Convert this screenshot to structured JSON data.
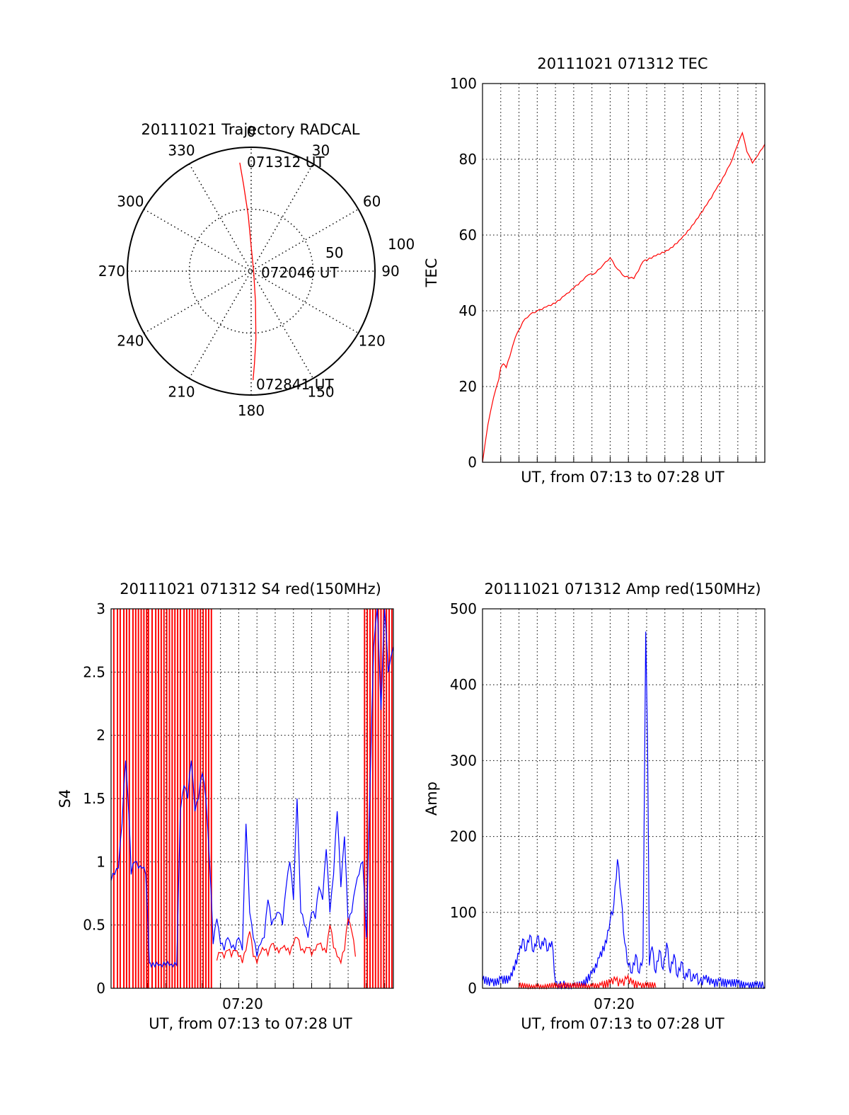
{
  "colors": {
    "red": "#ff0000",
    "blue": "#0000ff",
    "axis": "#000000"
  },
  "chart_data": [
    {
      "type": "polar",
      "title": "20111021 Trajectory RADCAL",
      "angle_ticks": [
        "0",
        "30",
        "60",
        "90",
        "120",
        "150",
        "180",
        "210",
        "240",
        "270",
        "300",
        "330"
      ],
      "radius_ticks": [
        "50",
        "100"
      ],
      "rlim": [
        0,
        100
      ],
      "grid": true,
      "annotations": [
        "071312 UT",
        "072046 UT",
        "072841 UT"
      ],
      "series": [
        {
          "color": "#ff0000",
          "points_az_r": [
            [
              354,
              88
            ],
            [
              355,
              70
            ],
            [
              357,
              45
            ],
            [
              0,
              20
            ],
            [
              90,
              2
            ],
            [
              172,
              25
            ],
            [
              176,
              55
            ],
            [
              178,
              75
            ],
            [
              179,
              88
            ]
          ]
        }
      ]
    },
    {
      "type": "line",
      "title": "20111021 071312 TEC",
      "xlabel": "UT, from 07:13 to 07:28 UT",
      "ylabel": "TEC",
      "xlim": [
        0,
        15.48
      ],
      "ylim": [
        0,
        100
      ],
      "y_ticks": [
        "0",
        "20",
        "40",
        "60",
        "80",
        "100"
      ],
      "grid": true,
      "series": [
        {
          "color": "#ff0000",
          "x": [
            0.0,
            0.3,
            0.6,
            0.9,
            1.0,
            1.15,
            1.3,
            1.5,
            1.8,
            2.2,
            2.6,
            3.0,
            3.5,
            4.0,
            4.5,
            5.0,
            5.5,
            5.8,
            6.2,
            6.6,
            7.0,
            7.4,
            7.8,
            8.3,
            8.8,
            9.5,
            10.2,
            10.9,
            11.6,
            12.3,
            12.8,
            13.3,
            13.7,
            14.0,
            14.25,
            14.5,
            14.8,
            15.1,
            15.48
          ],
          "y": [
            0,
            10,
            17,
            22,
            25,
            26,
            25,
            28,
            33,
            37,
            39,
            40,
            41,
            42,
            44,
            46,
            48,
            49.5,
            50,
            52,
            54,
            51,
            49,
            48.5,
            53,
            54.5,
            56,
            59,
            63,
            68,
            72,
            76,
            80,
            84,
            87,
            82,
            79,
            81,
            84
          ]
        }
      ]
    },
    {
      "type": "line",
      "title": "20111021 071312 S4 red(150MHz)",
      "xlabel": "UT, from 07:13 to 07:28 UT",
      "ylabel": "S4",
      "xlim": [
        0,
        15.48
      ],
      "ylim": [
        0,
        3
      ],
      "y_ticks": [
        "0",
        "0.5",
        "1",
        "1.5",
        "2",
        "2.5",
        "3"
      ],
      "x_tick_labels": [
        "07:20"
      ],
      "grid": true,
      "series": [
        {
          "color": "#0000ff",
          "x": [
            0.0,
            0.2,
            0.4,
            0.6,
            0.8,
            1.0,
            1.1,
            1.3,
            1.5,
            1.7,
            1.9,
            2.1,
            2.2,
            2.4,
            2.6,
            2.8,
            3.0,
            3.2,
            3.4,
            3.6,
            3.8,
            4.0,
            4.2,
            4.4,
            4.6,
            4.8,
            5.0,
            5.2,
            5.4,
            5.6,
            5.8,
            6.0,
            6.2,
            6.4,
            6.6,
            6.8,
            7.0,
            7.2,
            7.4,
            7.6,
            7.8,
            8.0,
            8.2,
            8.4,
            8.6,
            8.8,
            9.0,
            9.2,
            9.4,
            9.6,
            9.8,
            10.0,
            10.2,
            10.4,
            10.6,
            10.8,
            11.0,
            11.2,
            11.4,
            11.6,
            11.8,
            12.0,
            12.2,
            12.4,
            12.6,
            12.8,
            13.0,
            13.2,
            13.4,
            13.6,
            13.8,
            14.0,
            14.2,
            14.4,
            14.6,
            14.8,
            15.0,
            15.2,
            15.48
          ],
          "y": [
            0.85,
            0.9,
            0.95,
            1.3,
            1.8,
            1.3,
            0.9,
            1.0,
            0.95,
            0.95,
            0.9,
            0.2,
            0.17,
            0.17,
            0.18,
            0.17,
            0.18,
            0.18,
            0.17,
            0.18,
            1.4,
            1.6,
            1.5,
            1.8,
            1.4,
            1.5,
            1.7,
            1.5,
            1.0,
            0.35,
            0.55,
            0.35,
            0.3,
            0.4,
            0.32,
            0.3,
            0.4,
            0.3,
            1.3,
            0.6,
            0.4,
            0.25,
            0.35,
            0.4,
            0.7,
            0.5,
            0.55,
            0.6,
            0.5,
            0.8,
            1.0,
            0.7,
            1.5,
            0.6,
            0.5,
            0.4,
            0.6,
            0.55,
            0.8,
            0.7,
            1.1,
            0.6,
            0.9,
            1.4,
            0.8,
            1.2,
            0.5,
            0.6,
            0.8,
            0.9,
            1.0,
            0.4,
            1.6,
            2.7,
            3.0,
            2.2,
            3.0,
            2.5,
            2.7
          ]
        },
        {
          "color": "#ff0000",
          "x": [
            5.8,
            6.0,
            6.2,
            6.4,
            6.6,
            6.8,
            7.0,
            7.2,
            7.4,
            7.6,
            7.8,
            8.0,
            8.2,
            8.4,
            8.6,
            8.8,
            9.0,
            9.2,
            9.4,
            9.6,
            9.8,
            10.0,
            10.2,
            10.4,
            10.6,
            10.8,
            11.0,
            11.2,
            11.4,
            11.6,
            11.8,
            12.0,
            12.2,
            12.4,
            12.6,
            12.8,
            13.0,
            13.2,
            13.4
          ],
          "y": [
            0.22,
            0.28,
            0.24,
            0.3,
            0.25,
            0.3,
            0.25,
            0.2,
            0.3,
            0.45,
            0.25,
            0.2,
            0.28,
            0.3,
            0.26,
            0.35,
            0.3,
            0.28,
            0.32,
            0.3,
            0.27,
            0.35,
            0.4,
            0.3,
            0.28,
            0.32,
            0.26,
            0.3,
            0.35,
            0.3,
            0.28,
            0.5,
            0.32,
            0.25,
            0.2,
            0.3,
            0.55,
            0.45,
            0.25
          ]
        }
      ],
      "red_spike_x": [
        0.15,
        0.35,
        0.5,
        0.7,
        0.85,
        1.0,
        1.2,
        1.35,
        1.5,
        1.65,
        1.8,
        1.95,
        2.05,
        2.25,
        2.45,
        2.6,
        2.75,
        2.9,
        3.05,
        3.2,
        3.35,
        3.5,
        3.65,
        3.8,
        4.0,
        4.15,
        4.3,
        4.45,
        4.6,
        4.75,
        4.9,
        5.05,
        5.2,
        5.35,
        5.5,
        13.9,
        14.05,
        14.2,
        14.35,
        14.5,
        14.65,
        14.8,
        14.95,
        15.1,
        15.25,
        15.4
      ]
    },
    {
      "type": "line",
      "title": "20111021 071312 Amp red(150MHz)",
      "xlabel": "UT, from 07:13 to 07:28 UT",
      "ylabel": "Amp",
      "xlim": [
        0,
        15.48
      ],
      "ylim": [
        0,
        500
      ],
      "y_ticks": [
        "0",
        "100",
        "200",
        "300",
        "400",
        "500"
      ],
      "x_tick_labels": [
        "07:20"
      ],
      "grid": true,
      "series": [
        {
          "color": "#0000ff",
          "x": [
            0.0,
            0.5,
            1.0,
            1.5,
            2.0,
            2.2,
            2.4,
            2.6,
            2.8,
            3.0,
            3.2,
            3.4,
            3.6,
            3.8,
            4.0,
            4.2,
            4.4,
            4.6,
            5.0,
            5.5,
            6.0,
            6.4,
            6.8,
            7.0,
            7.2,
            7.4,
            7.6,
            7.8,
            8.0,
            8.2,
            8.4,
            8.6,
            8.8,
            8.95,
            9.05,
            9.15,
            9.3,
            9.5,
            9.7,
            9.9,
            10.1,
            10.3,
            10.5,
            10.7,
            10.9,
            11.1,
            11.3,
            11.5,
            11.7,
            11.9,
            12.2,
            12.6,
            13.0,
            13.5,
            14.0,
            14.5,
            15.0,
            15.48
          ],
          "y": [
            10,
            8,
            12,
            10,
            45,
            65,
            50,
            70,
            48,
            68,
            52,
            66,
            50,
            62,
            8,
            3,
            4,
            3,
            2,
            3,
            20,
            40,
            60,
            90,
            110,
            170,
            120,
            60,
            30,
            20,
            45,
            20,
            40,
            470,
            320,
            30,
            55,
            20,
            50,
            25,
            60,
            20,
            45,
            15,
            35,
            12,
            25,
            10,
            18,
            8,
            12,
            6,
            10,
            5,
            6,
            4,
            3,
            2
          ]
        },
        {
          "color": "#ff0000",
          "x": [
            2.0,
            3.0,
            4.0,
            5.0,
            6.0,
            6.5,
            7.0,
            7.3,
            7.6,
            7.9,
            8.2,
            8.6,
            9.0,
            9.5
          ],
          "y": [
            1,
            1,
            1,
            1,
            2,
            4,
            6,
            10,
            7,
            12,
            6,
            4,
            2,
            1
          ]
        }
      ]
    }
  ]
}
